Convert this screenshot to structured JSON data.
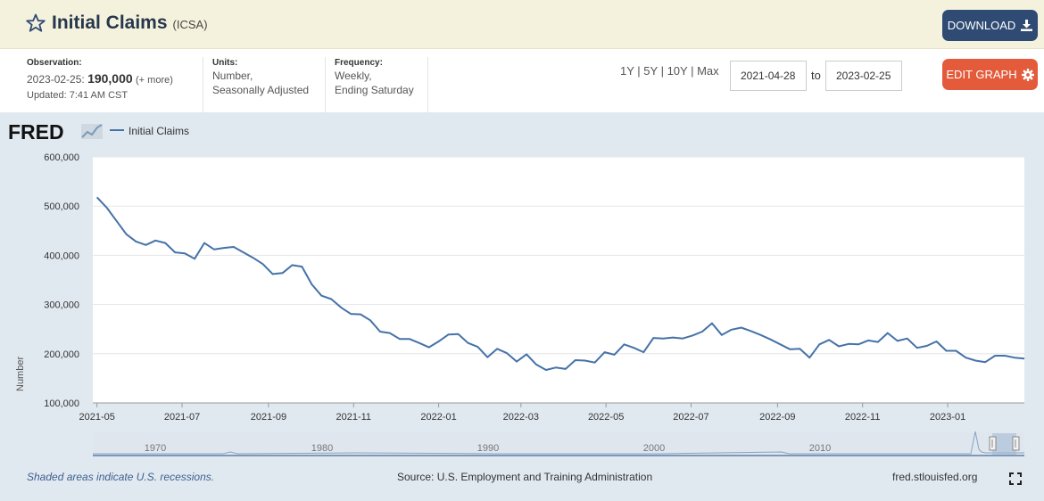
{
  "header": {
    "title": "Initial Claims",
    "series_id": "(ICSA)",
    "download_label": "DOWNLOAD"
  },
  "meta": {
    "observation_label": "Observation:",
    "observation_date": "2023-02-25:",
    "observation_value": "190,000",
    "observation_more": "(+ more)",
    "updated": "Updated: 7:41 AM CST",
    "units_label": "Units:",
    "units_line1": "Number,",
    "units_line2": "Seasonally Adjusted",
    "frequency_label": "Frequency:",
    "frequency_line1": "Weekly,",
    "frequency_line2": "Ending Saturday"
  },
  "controls": {
    "ranges": [
      "1Y",
      "5Y",
      "10Y",
      "Max"
    ],
    "start_date": "2021-04-28",
    "to_label": "to",
    "end_date": "2023-02-25",
    "edit_label": "EDIT GRAPH"
  },
  "footer": {
    "recession_note": "Shaded areas indicate U.S. recessions.",
    "source": "Source: U.S. Employment and Training Administration",
    "site": "fred.stlouisfed.org"
  },
  "brand": {
    "logo_text": "FRED",
    "accent": "#4572a7",
    "title_bar_color": "#f4f2dc",
    "download_color": "#2f4a73",
    "edit_color": "#e35b3b",
    "chart_bg": "#e1e9f0"
  },
  "icons": {
    "favorite": "star-icon",
    "download": "download-icon",
    "settings": "gear-icon",
    "fullscreen": "fullscreen-icon",
    "logo_graph": "fred-graph-icon"
  },
  "chart_data": {
    "type": "line",
    "title": "",
    "legend": [
      "Initial Claims"
    ],
    "legend_position": "top-left",
    "xlabel": "",
    "ylabel": "Number",
    "grid": true,
    "x_range": [
      "2021-04-28",
      "2023-02-25"
    ],
    "ylim": [
      100000,
      600000
    ],
    "y_ticks": [
      100000,
      200000,
      300000,
      400000,
      500000,
      600000
    ],
    "y_tick_labels": [
      "100,000",
      "200,000",
      "300,000",
      "400,000",
      "500,000",
      "600,000"
    ],
    "x_ticks": [
      "2021-05-01",
      "2021-07-01",
      "2021-09-01",
      "2021-11-01",
      "2022-01-01",
      "2022-03-01",
      "2022-05-01",
      "2022-07-01",
      "2022-09-01",
      "2022-11-01",
      "2023-01-01"
    ],
    "x_tick_labels": [
      "2021-05",
      "2021-07",
      "2021-09",
      "2021-11",
      "2022-01",
      "2022-03",
      "2022-05",
      "2022-07",
      "2022-09",
      "2022-11",
      "2023-01"
    ],
    "series": [
      {
        "name": "Initial Claims",
        "color": "#4572a7",
        "x": [
          "2021-05-01",
          "2021-05-08",
          "2021-05-15",
          "2021-05-22",
          "2021-05-29",
          "2021-06-05",
          "2021-06-12",
          "2021-06-19",
          "2021-06-26",
          "2021-07-03",
          "2021-07-10",
          "2021-07-17",
          "2021-07-24",
          "2021-07-31",
          "2021-08-07",
          "2021-08-14",
          "2021-08-21",
          "2021-08-28",
          "2021-09-04",
          "2021-09-11",
          "2021-09-18",
          "2021-09-25",
          "2021-10-02",
          "2021-10-09",
          "2021-10-16",
          "2021-10-23",
          "2021-10-30",
          "2021-11-06",
          "2021-11-13",
          "2021-11-20",
          "2021-11-27",
          "2021-12-04",
          "2021-12-11",
          "2021-12-18",
          "2021-12-25",
          "2022-01-01",
          "2022-01-08",
          "2022-01-15",
          "2022-01-22",
          "2022-01-29",
          "2022-02-05",
          "2022-02-12",
          "2022-02-19",
          "2022-02-26",
          "2022-03-05",
          "2022-03-12",
          "2022-03-19",
          "2022-03-26",
          "2022-04-02",
          "2022-04-09",
          "2022-04-16",
          "2022-04-23",
          "2022-04-30",
          "2022-05-07",
          "2022-05-14",
          "2022-05-21",
          "2022-05-28",
          "2022-06-04",
          "2022-06-11",
          "2022-06-18",
          "2022-06-25",
          "2022-07-02",
          "2022-07-09",
          "2022-07-16",
          "2022-07-23",
          "2022-07-30",
          "2022-08-06",
          "2022-08-13",
          "2022-08-20",
          "2022-08-27",
          "2022-09-03",
          "2022-09-10",
          "2022-09-17",
          "2022-09-24",
          "2022-10-01",
          "2022-10-08",
          "2022-10-15",
          "2022-10-22",
          "2022-10-29",
          "2022-11-05",
          "2022-11-12",
          "2022-11-19",
          "2022-11-26",
          "2022-12-03",
          "2022-12-10",
          "2022-12-17",
          "2022-12-24",
          "2022-12-31",
          "2023-01-07",
          "2023-01-14",
          "2023-01-21",
          "2023-01-28",
          "2023-02-04",
          "2023-02-11",
          "2023-02-18",
          "2023-02-25"
        ],
        "values": [
          518000,
          497000,
          470000,
          443000,
          428000,
          421000,
          430000,
          425000,
          406000,
          404000,
          393000,
          425000,
          412000,
          415000,
          417000,
          406000,
          395000,
          382000,
          362000,
          364000,
          380000,
          377000,
          341000,
          318000,
          311000,
          294000,
          281000,
          280000,
          268000,
          245000,
          242000,
          230000,
          230000,
          222000,
          213000,
          225000,
          239000,
          240000,
          222000,
          214000,
          193000,
          210000,
          201000,
          184000,
          199000,
          178000,
          167000,
          172000,
          169000,
          187000,
          186000,
          182000,
          203000,
          198000,
          219000,
          212000,
          203000,
          232000,
          231000,
          233000,
          231000,
          237000,
          245000,
          262000,
          238000,
          249000,
          253000,
          246000,
          238000,
          229000,
          219000,
          209000,
          210000,
          192000,
          219000,
          228000,
          215000,
          220000,
          219000,
          227000,
          224000,
          242000,
          226000,
          231000,
          212000,
          216000,
          225000,
          206000,
          206000,
          192000,
          186000,
          183000,
          196000,
          196000,
          192000,
          190000
        ]
      }
    ],
    "overview": {
      "tick_labels": [
        "1970",
        "1980",
        "1990",
        "2000",
        "2010"
      ]
    }
  }
}
